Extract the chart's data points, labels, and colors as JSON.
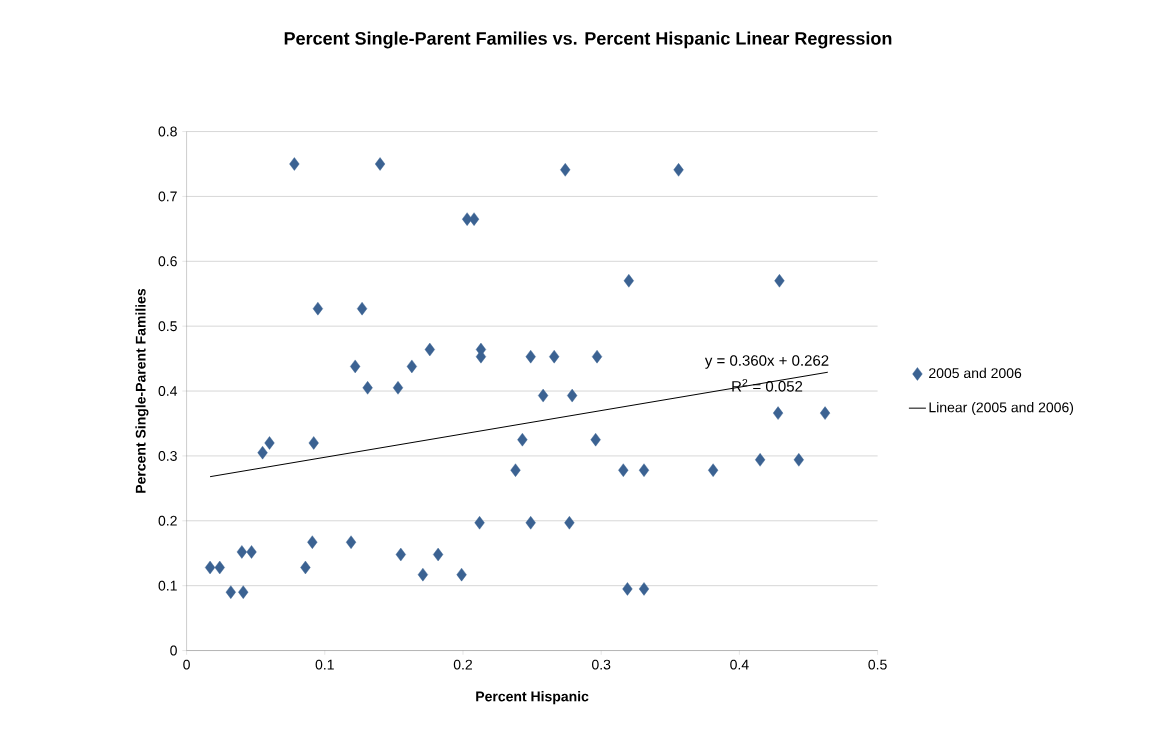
{
  "chart_data": {
    "type": "scatter",
    "title": "Percent Single-Parent Families vs. Percent Hispanic Linear Regression",
    "xlabel": "Percent Hispanic",
    "ylabel": "Percent Single-Parent Families",
    "xlim": [
      0,
      0.5
    ],
    "ylim": [
      0,
      0.8
    ],
    "xticks": [
      0,
      0.1,
      0.2,
      0.3,
      0.4,
      0.5
    ],
    "yticks": [
      0,
      0.1,
      0.2,
      0.3,
      0.4,
      0.5,
      0.6,
      0.7,
      0.8
    ],
    "grid": "y",
    "legend": "right",
    "marker": "diamond",
    "series": [
      {
        "name": "2005 and 2006",
        "color": "#3b6292",
        "x": [
          0.017,
          0.024,
          0.032,
          0.041,
          0.04,
          0.047,
          0.055,
          0.06,
          0.078,
          0.086,
          0.091,
          0.092,
          0.095,
          0.119,
          0.122,
          0.127,
          0.131,
          0.14,
          0.153,
          0.155,
          0.163,
          0.171,
          0.176,
          0.182,
          0.199,
          0.203,
          0.208,
          0.212,
          0.213,
          0.213,
          0.243,
          0.238,
          0.249,
          0.249,
          0.258,
          0.266,
          0.274,
          0.277,
          0.279,
          0.297,
          0.296,
          0.316,
          0.32,
          0.319,
          0.331,
          0.331,
          0.356,
          0.381,
          0.415,
          0.429,
          0.428,
          0.443,
          0.462
        ],
        "values": [
          0.128,
          0.128,
          0.09,
          0.09,
          0.152,
          0.152,
          0.305,
          0.32,
          0.75,
          0.128,
          0.167,
          0.32,
          0.527,
          0.167,
          0.438,
          0.527,
          0.405,
          0.75,
          0.405,
          0.148,
          0.438,
          0.117,
          0.464,
          0.148,
          0.117,
          0.665,
          0.665,
          0.197,
          0.464,
          0.453,
          0.325,
          0.278,
          0.453,
          0.197,
          0.393,
          0.453,
          0.741,
          0.197,
          0.393,
          0.453,
          0.325,
          0.278,
          0.57,
          0.095,
          0.278,
          0.095,
          0.741,
          0.278,
          0.294,
          0.57,
          0.366,
          0.294,
          0.366
        ]
      },
      {
        "name": "Linear (2005 and 2006)",
        "type": "line",
        "color": "#000000",
        "marker": "none",
        "x": [
          0.017,
          0.464
        ],
        "values": [
          0.268,
          0.429
        ]
      }
    ],
    "annotations": [
      "y = 0.360x + 0.262",
      "R$^{2}$ = 0.052"
    ]
  }
}
